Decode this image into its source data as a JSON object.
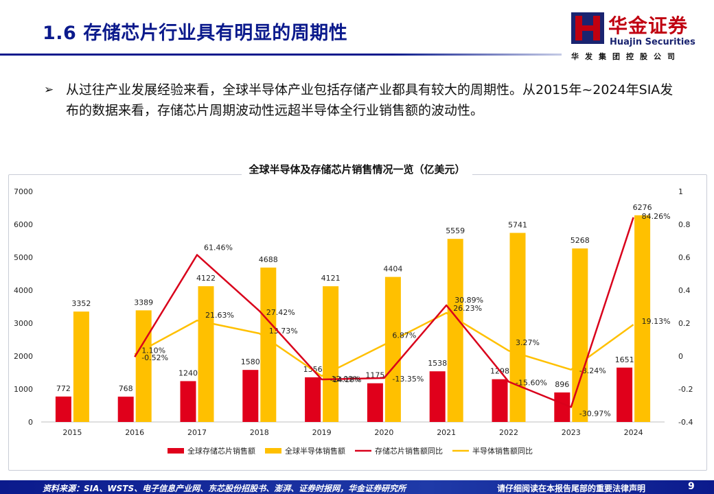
{
  "slide": {
    "title": "1.6 存储芯片行业具有明显的周期性",
    "bullet_marker": "➢",
    "bullet_text": "从过往产业发展经验来看，全球半导体产业包括存储产业都具有较大的周期性。从2015年~2024年SIA发布的数据来看，存储芯片周期波动性远超半导体全行业销售额的波动性。"
  },
  "logo": {
    "mark_icon": "huajin-logo-icon",
    "name": "华金证券",
    "name_en": "Huajin Securities",
    "subtitle": "华发集团控股公司",
    "colors": {
      "red": "#c00010",
      "navy": "#1a2470"
    }
  },
  "footer": {
    "source": "资料来源：SIA、WSTS、电子信息产业网、东芯股份招股书、澎湃、证券时报网，华金证券研究所",
    "disclaimer": "请仔细阅读在本报告尾部的重要法律声明",
    "page_number": "9"
  },
  "chart_data": {
    "type": "bar",
    "title": "全球半导体及存储芯片销售情况一览（亿美元）",
    "categories": [
      "2015",
      "2016",
      "2017",
      "2018",
      "2019",
      "2020",
      "2021",
      "2022",
      "2023",
      "2024"
    ],
    "y_left": {
      "range": [
        0,
        7000
      ],
      "ticks": [
        "0",
        "1000",
        "2000",
        "3000",
        "4000",
        "5000",
        "6000",
        "7000"
      ]
    },
    "y_right": {
      "range": [
        -0.4,
        1
      ],
      "ticks": [
        "-0.4",
        "-0.2",
        "0",
        "0.2",
        "0.4",
        "0.6",
        "0.8",
        "1"
      ]
    },
    "grid": false,
    "legend_position": "bottom",
    "bar_series": [
      {
        "name": "全球存储芯片销售额",
        "color": "#e0001b",
        "values": [
          772,
          768,
          1240,
          1580,
          1356,
          1175,
          1538,
          1298,
          896,
          1651
        ],
        "labels": [
          "772",
          "768",
          "1240",
          "1580",
          "1356",
          "1175",
          "1538",
          "1298",
          "896",
          "1651"
        ]
      },
      {
        "name": "全球半导体销售额",
        "color": "#ffc000",
        "values": [
          3352,
          3389,
          4122,
          4688,
          4121,
          4404,
          5559,
          5741,
          5268,
          6276
        ],
        "labels": [
          "3352",
          "3389",
          "4122",
          "4688",
          "4121",
          "4404",
          "5559",
          "5741",
          "5268",
          "6276"
        ]
      }
    ],
    "line_series": [
      {
        "name": "存储芯片销售额同比",
        "color": "#d9001b",
        "start_index": 1,
        "values": [
          -0.0052,
          0.6146,
          0.2742,
          -0.1418,
          -0.1335,
          0.3089,
          -0.156,
          -0.3097,
          0.8426
        ],
        "labels": [
          "-0.52%",
          "61.46%",
          "27.42%",
          "-14.18%",
          "-13.35%",
          "30.89%",
          "-15.60%",
          "-30.97%",
          "84.26%"
        ]
      },
      {
        "name": "半导体销售额同比",
        "color": "#ffc000",
        "start_index": 1,
        "values": [
          0.011,
          0.2163,
          0.1373,
          -0.1209,
          0.0687,
          0.2623,
          0.0327,
          -0.0824,
          0.1913
        ],
        "labels": [
          "1.10%",
          "21.63%",
          "13.73%",
          "-12.09%",
          "6.87%",
          "26.23%",
          "3.27%",
          "-8.24%",
          "19.13%"
        ]
      }
    ]
  }
}
